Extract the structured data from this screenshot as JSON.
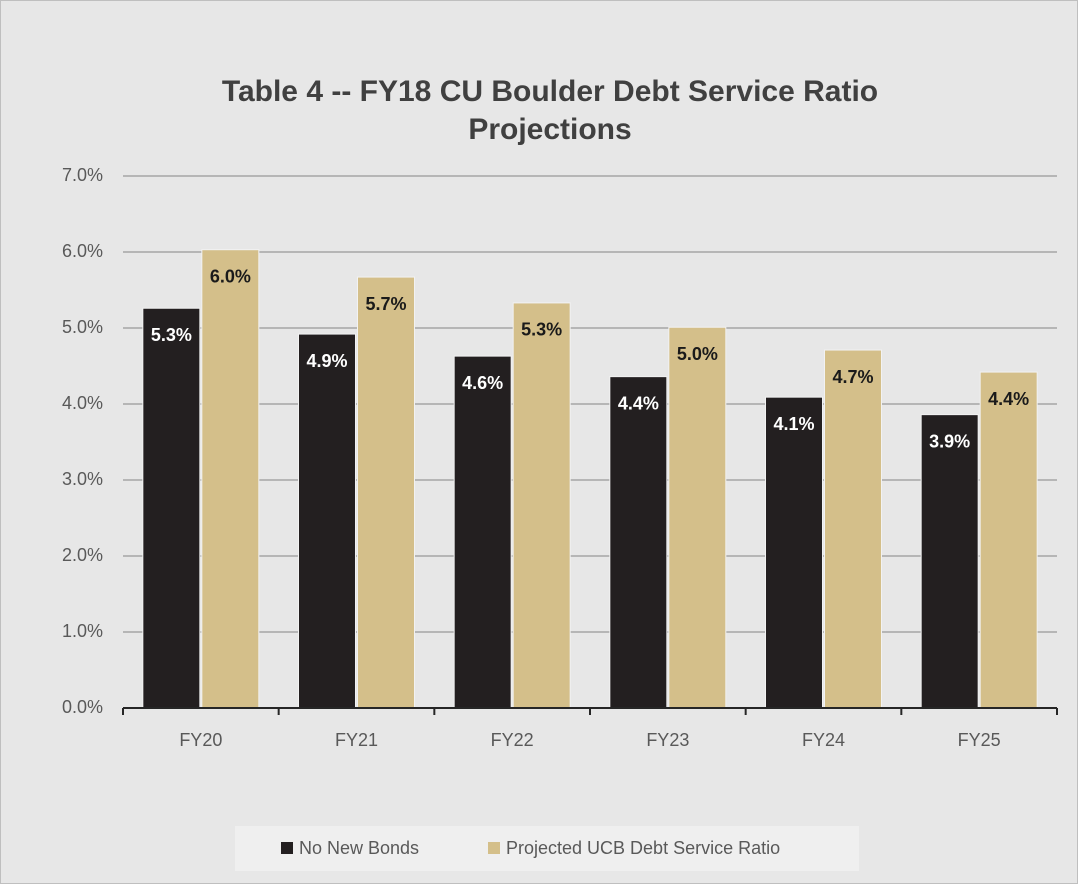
{
  "chart_data": {
    "type": "bar",
    "title": "Table 4 -- FY18 CU Boulder Debt Service Ratio Projections",
    "categories": [
      "FY20",
      "FY21",
      "FY22",
      "FY23",
      "FY24",
      "FY25"
    ],
    "series": [
      {
        "name": "No New Bonds",
        "color": "#231f20",
        "values": [
          5.26,
          4.92,
          4.63,
          4.36,
          4.09,
          3.86
        ],
        "value_labels": [
          "5.3%",
          "4.9%",
          "4.6%",
          "4.4%",
          "4.1%",
          "3.9%"
        ]
      },
      {
        "name": "Projected UCB Debt Service Ratio",
        "color": "#d4bf8a",
        "values": [
          6.03,
          5.67,
          5.33,
          5.01,
          4.71,
          4.42
        ],
        "value_labels": [
          "6.0%",
          "5.7%",
          "5.3%",
          "5.0%",
          "4.7%",
          "4.4%"
        ]
      }
    ],
    "ylim": [
      0,
      7
    ],
    "yticks": [
      {
        "value": 0,
        "label": "0.0%"
      },
      {
        "value": 1,
        "label": "1.0%"
      },
      {
        "value": 2,
        "label": "2.0%"
      },
      {
        "value": 3,
        "label": "3.0%"
      },
      {
        "value": 4,
        "label": "4.0%"
      },
      {
        "value": 5,
        "label": "5.0%"
      },
      {
        "value": 6,
        "label": "6.0%"
      },
      {
        "value": 7,
        "label": "7.0%"
      }
    ],
    "grid": true,
    "legend": "bottom"
  }
}
